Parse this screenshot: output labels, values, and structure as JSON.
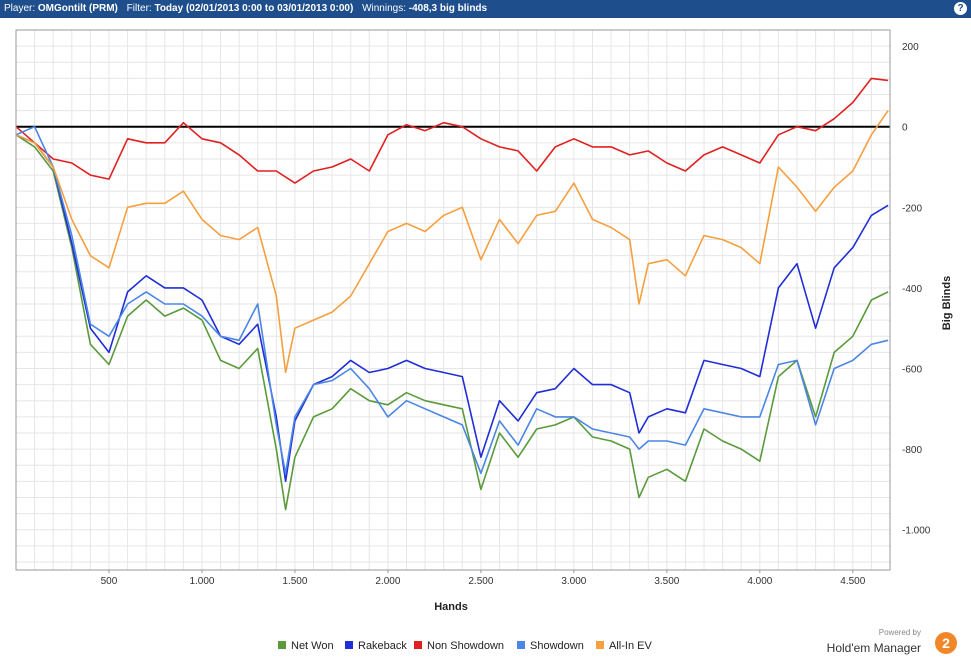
{
  "header": {
    "player_label": "Player:",
    "player_value": "OMGontilt (PRM)",
    "filter_label": "Filter:",
    "filter_value": "Today (02/01/2013 0:00 to 03/01/2013 0:00)",
    "winnings_label": "Winnings:",
    "winnings_value": "-408,3 big blinds",
    "help_label": "?"
  },
  "branding": {
    "powered_by": "Powered by",
    "name": "Hold'em Manager",
    "logo_text": "2"
  },
  "chart_data": {
    "type": "line",
    "title": "",
    "xlabel": "Hands",
    "ylabel": "Big Blinds",
    "xlim": [
      0,
      4700
    ],
    "ylim": [
      -1100,
      240
    ],
    "x_ticks": [
      500,
      1000,
      1500,
      2000,
      2500,
      3000,
      3500,
      4000,
      4500
    ],
    "x_tick_labels": [
      "500",
      "1.000",
      "1.500",
      "2.000",
      "2.500",
      "3.000",
      "3.500",
      "4.000",
      "4.500"
    ],
    "y_ticks": [
      200,
      0,
      -200,
      -400,
      -600,
      -800,
      -1000
    ],
    "y_tick_labels": [
      "200",
      "0",
      "-200",
      "-400",
      "-600",
      "-800",
      "-1.000"
    ],
    "grid": true,
    "legend_position": "bottom",
    "series": [
      {
        "name": "Net Won",
        "color": "#5a9a3c",
        "points": [
          [
            0,
            -20
          ],
          [
            100,
            -50
          ],
          [
            200,
            -110
          ],
          [
            300,
            -300
          ],
          [
            400,
            -540
          ],
          [
            500,
            -590
          ],
          [
            600,
            -470
          ],
          [
            700,
            -430
          ],
          [
            800,
            -470
          ],
          [
            900,
            -450
          ],
          [
            1000,
            -480
          ],
          [
            1100,
            -580
          ],
          [
            1200,
            -600
          ],
          [
            1300,
            -550
          ],
          [
            1400,
            -800
          ],
          [
            1450,
            -950
          ],
          [
            1500,
            -820
          ],
          [
            1600,
            -720
          ],
          [
            1700,
            -700
          ],
          [
            1800,
            -650
          ],
          [
            1900,
            -680
          ],
          [
            2000,
            -690
          ],
          [
            2100,
            -660
          ],
          [
            2200,
            -680
          ],
          [
            2300,
            -690
          ],
          [
            2400,
            -700
          ],
          [
            2500,
            -900
          ],
          [
            2600,
            -760
          ],
          [
            2700,
            -820
          ],
          [
            2800,
            -750
          ],
          [
            2900,
            -740
          ],
          [
            3000,
            -720
          ],
          [
            3100,
            -770
          ],
          [
            3200,
            -780
          ],
          [
            3300,
            -800
          ],
          [
            3350,
            -920
          ],
          [
            3400,
            -870
          ],
          [
            3500,
            -850
          ],
          [
            3600,
            -880
          ],
          [
            3700,
            -750
          ],
          [
            3800,
            -780
          ],
          [
            3900,
            -800
          ],
          [
            4000,
            -830
          ],
          [
            4100,
            -620
          ],
          [
            4200,
            -580
          ],
          [
            4300,
            -720
          ],
          [
            4400,
            -560
          ],
          [
            4500,
            -520
          ],
          [
            4600,
            -430
          ],
          [
            4690,
            -410
          ]
        ]
      },
      {
        "name": "Rakeback",
        "color": "#1f2ed6",
        "points": [
          [
            0,
            -20
          ],
          [
            100,
            -40
          ],
          [
            200,
            -100
          ],
          [
            300,
            -290
          ],
          [
            400,
            -500
          ],
          [
            500,
            -560
          ],
          [
            600,
            -410
          ],
          [
            700,
            -370
          ],
          [
            800,
            -400
          ],
          [
            900,
            -400
          ],
          [
            1000,
            -430
          ],
          [
            1100,
            -520
          ],
          [
            1200,
            -540
          ],
          [
            1300,
            -490
          ],
          [
            1400,
            -720
          ],
          [
            1450,
            -880
          ],
          [
            1500,
            -730
          ],
          [
            1600,
            -640
          ],
          [
            1700,
            -620
          ],
          [
            1800,
            -580
          ],
          [
            1900,
            -610
          ],
          [
            2000,
            -600
          ],
          [
            2100,
            -580
          ],
          [
            2200,
            -600
          ],
          [
            2300,
            -610
          ],
          [
            2400,
            -620
          ],
          [
            2500,
            -820
          ],
          [
            2600,
            -680
          ],
          [
            2700,
            -730
          ],
          [
            2800,
            -660
          ],
          [
            2900,
            -650
          ],
          [
            3000,
            -600
          ],
          [
            3100,
            -640
          ],
          [
            3200,
            -640
          ],
          [
            3300,
            -660
          ],
          [
            3350,
            -760
          ],
          [
            3400,
            -720
          ],
          [
            3500,
            -700
          ],
          [
            3600,
            -710
          ],
          [
            3700,
            -580
          ],
          [
            3800,
            -590
          ],
          [
            3900,
            -600
          ],
          [
            4000,
            -620
          ],
          [
            4100,
            -400
          ],
          [
            4200,
            -340
          ],
          [
            4300,
            -500
          ],
          [
            4400,
            -350
          ],
          [
            4500,
            -300
          ],
          [
            4600,
            -220
          ],
          [
            4690,
            -195
          ]
        ]
      },
      {
        "name": "Non Showdown",
        "color": "#e02020",
        "points": [
          [
            0,
            0
          ],
          [
            100,
            -40
          ],
          [
            200,
            -80
          ],
          [
            300,
            -90
          ],
          [
            400,
            -120
          ],
          [
            500,
            -130
          ],
          [
            600,
            -30
          ],
          [
            700,
            -40
          ],
          [
            800,
            -40
          ],
          [
            900,
            10
          ],
          [
            1000,
            -30
          ],
          [
            1100,
            -40
          ],
          [
            1200,
            -70
          ],
          [
            1300,
            -110
          ],
          [
            1400,
            -110
          ],
          [
            1500,
            -140
          ],
          [
            1600,
            -110
          ],
          [
            1700,
            -100
          ],
          [
            1800,
            -80
          ],
          [
            1900,
            -110
          ],
          [
            2000,
            -20
          ],
          [
            2100,
            5
          ],
          [
            2200,
            -10
          ],
          [
            2300,
            10
          ],
          [
            2400,
            0
          ],
          [
            2500,
            -30
          ],
          [
            2600,
            -50
          ],
          [
            2700,
            -60
          ],
          [
            2800,
            -110
          ],
          [
            2900,
            -50
          ],
          [
            3000,
            -30
          ],
          [
            3100,
            -50
          ],
          [
            3200,
            -50
          ],
          [
            3300,
            -70
          ],
          [
            3400,
            -60
          ],
          [
            3500,
            -90
          ],
          [
            3600,
            -110
          ],
          [
            3700,
            -70
          ],
          [
            3800,
            -50
          ],
          [
            3900,
            -70
          ],
          [
            4000,
            -90
          ],
          [
            4100,
            -20
          ],
          [
            4200,
            0
          ],
          [
            4300,
            -10
          ],
          [
            4400,
            20
          ],
          [
            4500,
            60
          ],
          [
            4600,
            120
          ],
          [
            4690,
            115
          ]
        ]
      },
      {
        "name": "Showdown",
        "color": "#4b86e6",
        "points": [
          [
            0,
            -20
          ],
          [
            100,
            0
          ],
          [
            200,
            -100
          ],
          [
            300,
            -270
          ],
          [
            400,
            -490
          ],
          [
            500,
            -520
          ],
          [
            600,
            -440
          ],
          [
            700,
            -410
          ],
          [
            800,
            -440
          ],
          [
            900,
            -440
          ],
          [
            1000,
            -470
          ],
          [
            1100,
            -520
          ],
          [
            1200,
            -530
          ],
          [
            1300,
            -440
          ],
          [
            1400,
            -740
          ],
          [
            1450,
            -860
          ],
          [
            1500,
            -720
          ],
          [
            1600,
            -640
          ],
          [
            1700,
            -630
          ],
          [
            1800,
            -600
          ],
          [
            1900,
            -650
          ],
          [
            2000,
            -720
          ],
          [
            2100,
            -680
          ],
          [
            2200,
            -700
          ],
          [
            2300,
            -720
          ],
          [
            2400,
            -740
          ],
          [
            2500,
            -860
          ],
          [
            2600,
            -730
          ],
          [
            2700,
            -790
          ],
          [
            2800,
            -700
          ],
          [
            2900,
            -720
          ],
          [
            3000,
            -720
          ],
          [
            3100,
            -750
          ],
          [
            3200,
            -760
          ],
          [
            3300,
            -770
          ],
          [
            3350,
            -800
          ],
          [
            3400,
            -780
          ],
          [
            3500,
            -780
          ],
          [
            3600,
            -790
          ],
          [
            3700,
            -700
          ],
          [
            3800,
            -710
          ],
          [
            3900,
            -720
          ],
          [
            4000,
            -720
          ],
          [
            4100,
            -590
          ],
          [
            4200,
            -580
          ],
          [
            4300,
            -740
          ],
          [
            4400,
            -600
          ],
          [
            4500,
            -580
          ],
          [
            4600,
            -540
          ],
          [
            4690,
            -530
          ]
        ]
      },
      {
        "name": "All-In EV",
        "color": "#f5a040",
        "points": [
          [
            0,
            -20
          ],
          [
            100,
            -40
          ],
          [
            200,
            -100
          ],
          [
            300,
            -230
          ],
          [
            400,
            -320
          ],
          [
            500,
            -350
          ],
          [
            600,
            -200
          ],
          [
            700,
            -190
          ],
          [
            800,
            -190
          ],
          [
            900,
            -160
          ],
          [
            1000,
            -230
          ],
          [
            1100,
            -270
          ],
          [
            1200,
            -280
          ],
          [
            1300,
            -250
          ],
          [
            1400,
            -420
          ],
          [
            1450,
            -610
          ],
          [
            1500,
            -500
          ],
          [
            1600,
            -480
          ],
          [
            1700,
            -460
          ],
          [
            1800,
            -420
          ],
          [
            1900,
            -340
          ],
          [
            2000,
            -260
          ],
          [
            2100,
            -240
          ],
          [
            2200,
            -260
          ],
          [
            2300,
            -220
          ],
          [
            2400,
            -200
          ],
          [
            2500,
            -330
          ],
          [
            2600,
            -230
          ],
          [
            2700,
            -290
          ],
          [
            2800,
            -220
          ],
          [
            2900,
            -210
          ],
          [
            3000,
            -140
          ],
          [
            3100,
            -230
          ],
          [
            3200,
            -250
          ],
          [
            3300,
            -280
          ],
          [
            3350,
            -440
          ],
          [
            3400,
            -340
          ],
          [
            3500,
            -330
          ],
          [
            3600,
            -370
          ],
          [
            3700,
            -270
          ],
          [
            3800,
            -280
          ],
          [
            3900,
            -300
          ],
          [
            4000,
            -340
          ],
          [
            4100,
            -100
          ],
          [
            4200,
            -150
          ],
          [
            4300,
            -210
          ],
          [
            4400,
            -150
          ],
          [
            4500,
            -110
          ],
          [
            4600,
            -20
          ],
          [
            4690,
            40
          ]
        ]
      }
    ]
  }
}
